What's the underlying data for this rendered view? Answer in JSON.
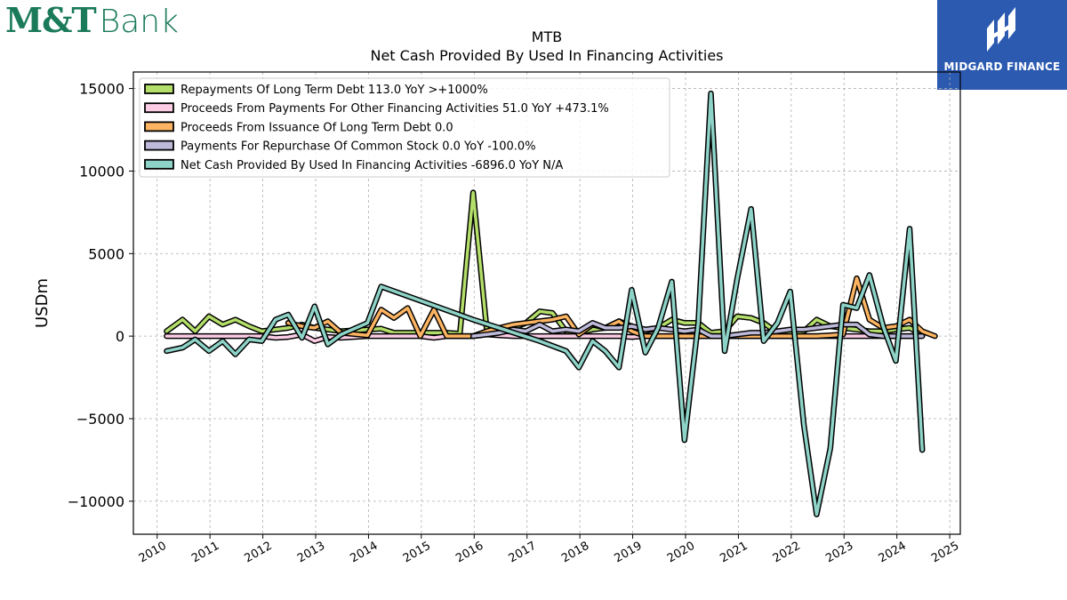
{
  "brand": {
    "left_logo": {
      "part1": "M&T",
      "part2": "Bank"
    },
    "right_logo": "MIDGARD FINANCE"
  },
  "chart_data": {
    "type": "line",
    "title": "MTB",
    "subtitle": "Net Cash Provided By Used In Financing Activities",
    "ylabel": "USDm",
    "xlabel": "",
    "ylim": [
      -12000,
      16000
    ],
    "xlim": [
      2009.55,
      2025.2
    ],
    "yticks": [
      -10000,
      -5000,
      0,
      5000,
      10000,
      15000
    ],
    "ytick_labels": [
      "−10000",
      "−5000",
      "0",
      "5000",
      "10000",
      "15000"
    ],
    "xticks": [
      2010,
      2011,
      2012,
      2013,
      2014,
      2015,
      2016,
      2017,
      2018,
      2019,
      2020,
      2021,
      2022,
      2023,
      2024,
      2025
    ],
    "xtick_labels": [
      "2010",
      "2011",
      "2012",
      "2013",
      "2014",
      "2015",
      "2016",
      "2017",
      "2018",
      "2019",
      "2020",
      "2021",
      "2022",
      "2023",
      "2024",
      "2025"
    ],
    "grid": true,
    "legend_position": "top-left",
    "series": [
      {
        "name": "Repayments Of Long Term Debt  113.0 YoY >+1000%",
        "color": "#b3de69",
        "points": [
          [
            2010.18,
            300
          ],
          [
            2010.48,
            1000
          ],
          [
            2010.72,
            300
          ],
          [
            2010.98,
            1200
          ],
          [
            2011.24,
            700
          ],
          [
            2011.48,
            1000
          ],
          [
            2011.74,
            600
          ],
          [
            2011.98,
            300
          ],
          [
            2012.24,
            400
          ],
          [
            2012.48,
            500
          ],
          [
            2012.74,
            700
          ],
          [
            2012.98,
            500
          ],
          [
            2013.23,
            400
          ],
          [
            2013.48,
            300
          ],
          [
            2013.98,
            400
          ],
          [
            2014.24,
            450
          ],
          [
            2014.48,
            200
          ],
          [
            2014.74,
            200
          ],
          [
            2014.98,
            200
          ],
          [
            2015.24,
            200
          ],
          [
            2015.48,
            200
          ],
          [
            2015.73,
            150
          ],
          [
            2015.98,
            8700
          ],
          [
            2016.24,
            300
          ],
          [
            2016.48,
            200
          ],
          [
            2016.74,
            500
          ],
          [
            2016.98,
            800
          ],
          [
            2017.24,
            1500
          ],
          [
            2017.48,
            1400
          ],
          [
            2017.74,
            300
          ],
          [
            2017.98,
            200
          ],
          [
            2018.24,
            400
          ],
          [
            2018.48,
            500
          ],
          [
            2018.74,
            900
          ],
          [
            2018.98,
            600
          ],
          [
            2019.24,
            300
          ],
          [
            2019.48,
            500
          ],
          [
            2019.74,
            1000
          ],
          [
            2019.98,
            800
          ],
          [
            2020.24,
            800
          ],
          [
            2020.48,
            200
          ],
          [
            2020.74,
            300
          ],
          [
            2020.98,
            1200
          ],
          [
            2021.24,
            1100
          ],
          [
            2021.48,
            800
          ],
          [
            2021.74,
            200
          ],
          [
            2021.98,
            200
          ],
          [
            2022.24,
            300
          ],
          [
            2022.48,
            1000
          ],
          [
            2022.74,
            600
          ],
          [
            2022.98,
            500
          ],
          [
            2023.24,
            400
          ],
          [
            2023.48,
            300
          ],
          [
            2023.74,
            300
          ],
          [
            2023.98,
            400
          ],
          [
            2024.24,
            500
          ],
          [
            2024.48,
            100
          ],
          [
            2024.48,
            113
          ]
        ]
      },
      {
        "name": "Proceeds From Payments For Other Financing Activities  51.0 YoY +473.1%",
        "color": "#fccde5",
        "points": [
          [
            2010.18,
            0
          ],
          [
            2010.48,
            0
          ],
          [
            2010.72,
            0
          ],
          [
            2010.98,
            0
          ],
          [
            2011.24,
            0
          ],
          [
            2011.48,
            0
          ],
          [
            2011.74,
            0
          ],
          [
            2011.98,
            0
          ],
          [
            2012.24,
            -100
          ],
          [
            2012.48,
            -50
          ],
          [
            2012.74,
            100
          ],
          [
            2012.98,
            -300
          ],
          [
            2013.23,
            -50
          ],
          [
            2013.48,
            -100
          ],
          [
            2013.98,
            0
          ],
          [
            2014.24,
            0
          ],
          [
            2014.48,
            0
          ],
          [
            2014.74,
            0
          ],
          [
            2014.98,
            0
          ],
          [
            2015.24,
            -100
          ],
          [
            2015.48,
            0
          ],
          [
            2015.73,
            0
          ],
          [
            2015.98,
            0
          ],
          [
            2016.24,
            100
          ],
          [
            2016.48,
            50
          ],
          [
            2016.74,
            0
          ],
          [
            2016.98,
            0
          ],
          [
            2017.24,
            0
          ],
          [
            2017.48,
            0
          ],
          [
            2017.74,
            0
          ],
          [
            2017.98,
            0
          ],
          [
            2018.24,
            0
          ],
          [
            2018.48,
            0
          ],
          [
            2018.74,
            0
          ],
          [
            2018.98,
            -50
          ],
          [
            2019.24,
            0
          ],
          [
            2019.48,
            0
          ],
          [
            2019.74,
            0
          ],
          [
            2019.98,
            0
          ],
          [
            2020.24,
            0
          ],
          [
            2020.48,
            0
          ],
          [
            2020.74,
            0
          ],
          [
            2020.98,
            0
          ],
          [
            2021.24,
            0
          ],
          [
            2021.48,
            0
          ],
          [
            2021.74,
            0
          ],
          [
            2021.98,
            0
          ],
          [
            2022.24,
            0
          ],
          [
            2022.48,
            0
          ],
          [
            2022.74,
            0
          ],
          [
            2022.98,
            0
          ],
          [
            2023.24,
            0
          ],
          [
            2023.48,
            0
          ],
          [
            2023.74,
            0
          ],
          [
            2023.98,
            0
          ],
          [
            2024.24,
            0
          ],
          [
            2024.48,
            51
          ]
        ]
      },
      {
        "name": "Proceeds From Issuance Of Long Term Debt  0.0",
        "color": "#fdb462",
        "points": [
          [
            2012.48,
            800
          ],
          [
            2012.74,
            600
          ],
          [
            2012.98,
            500
          ],
          [
            2013.23,
            900
          ],
          [
            2013.48,
            200
          ],
          [
            2013.98,
            50
          ],
          [
            2014.24,
            1600
          ],
          [
            2014.48,
            1100
          ],
          [
            2014.74,
            1700
          ],
          [
            2014.98,
            0
          ],
          [
            2015.24,
            1600
          ],
          [
            2015.48,
            0
          ],
          [
            2015.73,
            0
          ],
          [
            2015.98,
            0
          ],
          [
            2016.24,
            300
          ],
          [
            2016.48,
            500
          ],
          [
            2016.74,
            700
          ],
          [
            2016.98,
            800
          ],
          [
            2017.24,
            900
          ],
          [
            2017.48,
            1000
          ],
          [
            2017.74,
            1200
          ],
          [
            2017.98,
            100
          ],
          [
            2018.24,
            700
          ],
          [
            2018.48,
            500
          ],
          [
            2018.74,
            900
          ],
          [
            2018.98,
            300
          ],
          [
            2019.24,
            0
          ],
          [
            2019.48,
            0
          ],
          [
            2019.74,
            0
          ],
          [
            2019.98,
            0
          ],
          [
            2020.24,
            0
          ],
          [
            2020.48,
            0
          ],
          [
            2020.74,
            0
          ],
          [
            2020.98,
            0
          ],
          [
            2021.24,
            0
          ],
          [
            2021.48,
            0
          ],
          [
            2021.74,
            0
          ],
          [
            2021.98,
            0
          ],
          [
            2022.24,
            0
          ],
          [
            2022.48,
            0
          ],
          [
            2022.74,
            50
          ],
          [
            2022.98,
            100
          ],
          [
            2023.24,
            3500
          ],
          [
            2023.48,
            1000
          ],
          [
            2023.74,
            500
          ],
          [
            2023.98,
            600
          ],
          [
            2024.24,
            1000
          ],
          [
            2024.48,
            300
          ],
          [
            2024.72,
            0
          ]
        ]
      },
      {
        "name": "Payments For Repurchase Of Common Stock  0.0 YoY -100.0%",
        "color": "#bebada",
        "points": [
          [
            2015.98,
            0
          ],
          [
            2016.24,
            100
          ],
          [
            2016.48,
            200
          ],
          [
            2016.74,
            400
          ],
          [
            2016.98,
            300
          ],
          [
            2017.24,
            700
          ],
          [
            2017.48,
            300
          ],
          [
            2017.74,
            400
          ],
          [
            2017.98,
            300
          ],
          [
            2018.24,
            800
          ],
          [
            2018.48,
            500
          ],
          [
            2018.74,
            500
          ],
          [
            2018.98,
            600
          ],
          [
            2019.24,
            400
          ],
          [
            2019.48,
            500
          ],
          [
            2019.74,
            400
          ],
          [
            2019.98,
            300
          ],
          [
            2020.24,
            400
          ],
          [
            2020.48,
            0
          ],
          [
            2020.74,
            0
          ],
          [
            2020.98,
            100
          ],
          [
            2021.24,
            200
          ],
          [
            2021.48,
            200
          ],
          [
            2021.74,
            300
          ],
          [
            2021.98,
            400
          ],
          [
            2022.24,
            400
          ],
          [
            2022.48,
            500
          ],
          [
            2022.74,
            600
          ],
          [
            2022.98,
            700
          ],
          [
            2023.24,
            700
          ],
          [
            2023.48,
            100
          ],
          [
            2023.74,
            0
          ],
          [
            2023.98,
            0
          ],
          [
            2024.24,
            0
          ],
          [
            2024.48,
            0
          ]
        ]
      },
      {
        "name": "Net Cash Provided By Used In Financing Activities  -6896.0 YoY N/A",
        "color": "#8dd3c7",
        "points": [
          [
            2010.18,
            -900
          ],
          [
            2010.48,
            -700
          ],
          [
            2010.72,
            -200
          ],
          [
            2010.98,
            -900
          ],
          [
            2011.24,
            -300
          ],
          [
            2011.48,
            -1100
          ],
          [
            2011.74,
            -200
          ],
          [
            2011.98,
            -300
          ],
          [
            2012.24,
            1000
          ],
          [
            2012.48,
            1300
          ],
          [
            2012.74,
            -100
          ],
          [
            2012.98,
            1800
          ],
          [
            2013.23,
            -500
          ],
          [
            2013.48,
            100
          ],
          [
            2013.98,
            800
          ],
          [
            2014.24,
            3000
          ],
          [
            2015.98,
            1000
          ],
          [
            2017.24,
            -300
          ],
          [
            2017.74,
            -900
          ],
          [
            2017.98,
            -1900
          ],
          [
            2018.24,
            -300
          ],
          [
            2018.48,
            -900
          ],
          [
            2018.74,
            -1900
          ],
          [
            2018.98,
            2800
          ],
          [
            2019.24,
            -1000
          ],
          [
            2019.48,
            500
          ],
          [
            2019.74,
            3300
          ],
          [
            2019.98,
            -6300
          ],
          [
            2020.24,
            800
          ],
          [
            2020.48,
            14700
          ],
          [
            2020.74,
            -900
          ],
          [
            2020.98,
            3500
          ],
          [
            2021.24,
            7700
          ],
          [
            2021.48,
            -300
          ],
          [
            2021.74,
            800
          ],
          [
            2021.98,
            2700
          ],
          [
            2022.24,
            -5400
          ],
          [
            2022.48,
            -10800
          ],
          [
            2022.74,
            -6800
          ],
          [
            2022.98,
            1900
          ],
          [
            2023.24,
            1700
          ],
          [
            2023.48,
            3700
          ],
          [
            2023.74,
            600
          ],
          [
            2023.98,
            -1500
          ],
          [
            2024.24,
            6500
          ],
          [
            2024.48,
            -6896
          ]
        ]
      }
    ]
  }
}
